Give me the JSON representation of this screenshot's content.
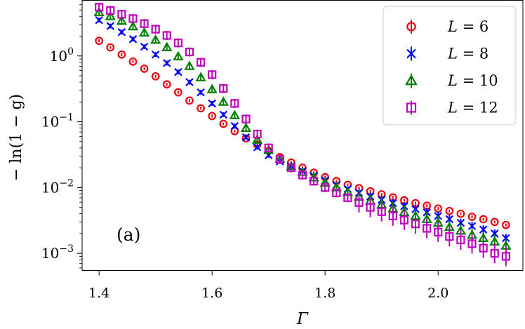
{
  "chart_data": {
    "type": "scatter",
    "panel_label": "(a)",
    "xlabel": "Γ",
    "ylabel": "− ln(1 − g)",
    "xlim": [
      1.37,
      2.15
    ],
    "ylim": [
      0.00055,
      7
    ],
    "yscale": "log",
    "xticks": [
      1.4,
      1.6,
      1.8,
      2.0
    ],
    "xtick_labels": [
      "1.4",
      "1.6",
      "1.8",
      "2.0"
    ],
    "yticks": [
      0.001,
      0.01,
      0.1,
      1
    ],
    "ytick_labels": [
      {
        "base": "10",
        "exp": "−3"
      },
      {
        "base": "10",
        "exp": "−2"
      },
      {
        "base": "10",
        "exp": "−1"
      },
      {
        "base": "10",
        "exp": "0"
      }
    ],
    "legend_position": "top-right",
    "x": [
      1.4,
      1.42,
      1.44,
      1.46,
      1.48,
      1.5,
      1.52,
      1.54,
      1.56,
      1.58,
      1.6,
      1.62,
      1.64,
      1.66,
      1.68,
      1.7,
      1.72,
      1.74,
      1.76,
      1.78,
      1.8,
      1.82,
      1.84,
      1.86,
      1.88,
      1.9,
      1.92,
      1.94,
      1.96,
      1.98,
      2.0,
      2.02,
      2.04,
      2.06,
      2.08,
      2.1,
      2.12
    ],
    "series": [
      {
        "name": "L = 6",
        "label_var": "L",
        "label_val": "6",
        "marker": "circle",
        "color": "#e8000b",
        "values": [
          1.7,
          1.35,
          1.05,
          0.82,
          0.64,
          0.49,
          0.37,
          0.28,
          0.21,
          0.16,
          0.122,
          0.093,
          0.072,
          0.056,
          0.045,
          0.036,
          0.029,
          0.024,
          0.02,
          0.0168,
          0.0144,
          0.0125,
          0.011,
          0.0098,
          0.0088,
          0.0079,
          0.0071,
          0.0064,
          0.0058,
          0.0053,
          0.0048,
          0.0044,
          0.004,
          0.0036,
          0.0033,
          0.003,
          0.0027
        ]
      },
      {
        "name": "L = 8",
        "label_var": "L",
        "label_val": "8",
        "marker": "x",
        "color": "#0000ff",
        "values": [
          3.5,
          2.85,
          2.3,
          1.8,
          1.38,
          1.05,
          0.78,
          0.57,
          0.4,
          0.28,
          0.19,
          0.128,
          0.086,
          0.058,
          0.041,
          0.031,
          0.025,
          0.021,
          0.0178,
          0.015,
          0.0128,
          0.011,
          0.0095,
          0.0083,
          0.0073,
          0.0065,
          0.0058,
          0.0052,
          0.0047,
          0.0042,
          0.0037,
          0.0033,
          0.0029,
          0.0026,
          0.0023,
          0.002,
          0.0017
        ]
      },
      {
        "name": "L = 10",
        "label_var": "L",
        "label_val": "10",
        "marker": "triangle",
        "color": "#008000",
        "values": [
          4.6,
          4.0,
          3.4,
          2.8,
          2.25,
          1.75,
          1.35,
          0.98,
          0.7,
          0.47,
          0.31,
          0.2,
          0.125,
          0.08,
          0.053,
          0.037,
          0.027,
          0.021,
          0.0172,
          0.0142,
          0.0118,
          0.01,
          0.0085,
          0.0072,
          0.0063,
          0.0055,
          0.0048,
          0.0042,
          0.0037,
          0.0033,
          0.0029,
          0.0025,
          0.0022,
          0.0019,
          0.0017,
          0.0015,
          0.0013
        ]
      },
      {
        "name": "L = 12",
        "label_var": "L",
        "label_val": "12",
        "marker": "square",
        "color": "#bf00bf",
        "values": [
          5.5,
          4.9,
          4.3,
          3.7,
          3.1,
          2.55,
          2.05,
          1.58,
          1.15,
          0.8,
          0.52,
          0.32,
          0.19,
          0.11,
          0.065,
          0.04,
          0.027,
          0.02,
          0.0155,
          0.0125,
          0.01,
          0.0083,
          0.007,
          0.0059,
          0.005,
          0.0043,
          0.0037,
          0.0032,
          0.0028,
          0.0024,
          0.0021,
          0.0018,
          0.0016,
          0.0014,
          0.0012,
          0.001,
          0.0009
        ]
      }
    ]
  }
}
